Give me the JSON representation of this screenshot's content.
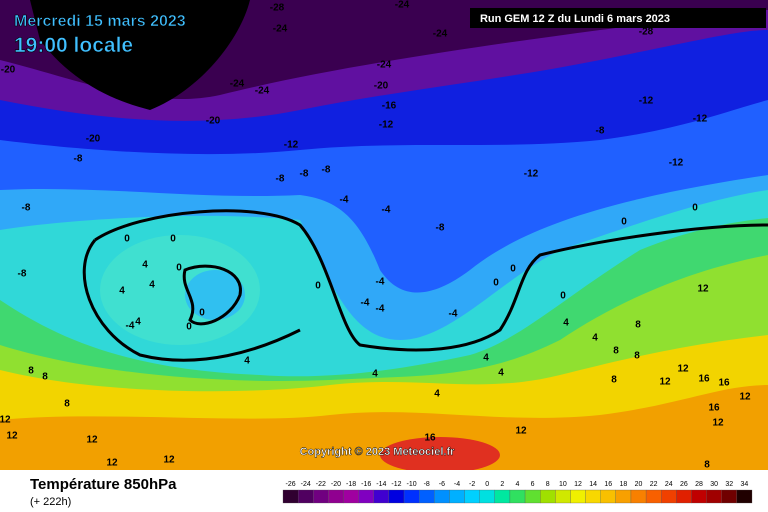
{
  "header": {
    "date": "Mercredi 15 mars 2023",
    "time": "19:00 locale",
    "run": "Run GEM 12 Z du Lundi 6 mars 2023"
  },
  "footer": {
    "variable": "Température 850hPa",
    "lead": "(+ 222h)",
    "copyright": "Copyright © 2023 Meteociel.fr"
  },
  "map": {
    "contour_labels": [
      -28,
      -24,
      -24,
      -24,
      -28,
      -20,
      -24,
      -24,
      -24,
      -20,
      -16,
      -20,
      -12,
      -12,
      -20,
      -8,
      -12,
      -12,
      -8,
      -12,
      -12,
      -8,
      -8,
      -8,
      -8,
      -4,
      -4,
      0,
      0,
      0,
      -8,
      0,
      -8,
      4,
      0,
      4,
      -4,
      0,
      0,
      4,
      0,
      -4,
      -4,
      0,
      12,
      -4,
      0,
      -4,
      4,
      0,
      4,
      8,
      4,
      8,
      4,
      4,
      4,
      8,
      8,
      4,
      8,
      8,
      12,
      16,
      12,
      16,
      8,
      4,
      12,
      12,
      12,
      12,
      16,
      16,
      12,
      12,
      12,
      12,
      8
    ]
  },
  "colorbar": {
    "ticks": [
      -26,
      -24,
      -22,
      -20,
      -18,
      -16,
      -14,
      -12,
      -10,
      -8,
      -6,
      -4,
      -2,
      0,
      2,
      4,
      6,
      8,
      10,
      12,
      14,
      16,
      18,
      20,
      22,
      24,
      26,
      28,
      30,
      32,
      34
    ],
    "colors": [
      "#300030",
      "#500060",
      "#700080",
      "#900090",
      "#a000a0",
      "#8000c0",
      "#4000d0",
      "#0000e0",
      "#0030ff",
      "#0060ff",
      "#0090ff",
      "#00b0ff",
      "#00d0ff",
      "#00e0e0",
      "#00e8a0",
      "#30e060",
      "#60e030",
      "#a0e000",
      "#d0e800",
      "#f0f000",
      "#f8d800",
      "#f8c000",
      "#f8a000",
      "#f88000",
      "#f86000",
      "#f04000",
      "#e02000",
      "#c00000",
      "#a00000",
      "#700000",
      "#200000"
    ]
  }
}
